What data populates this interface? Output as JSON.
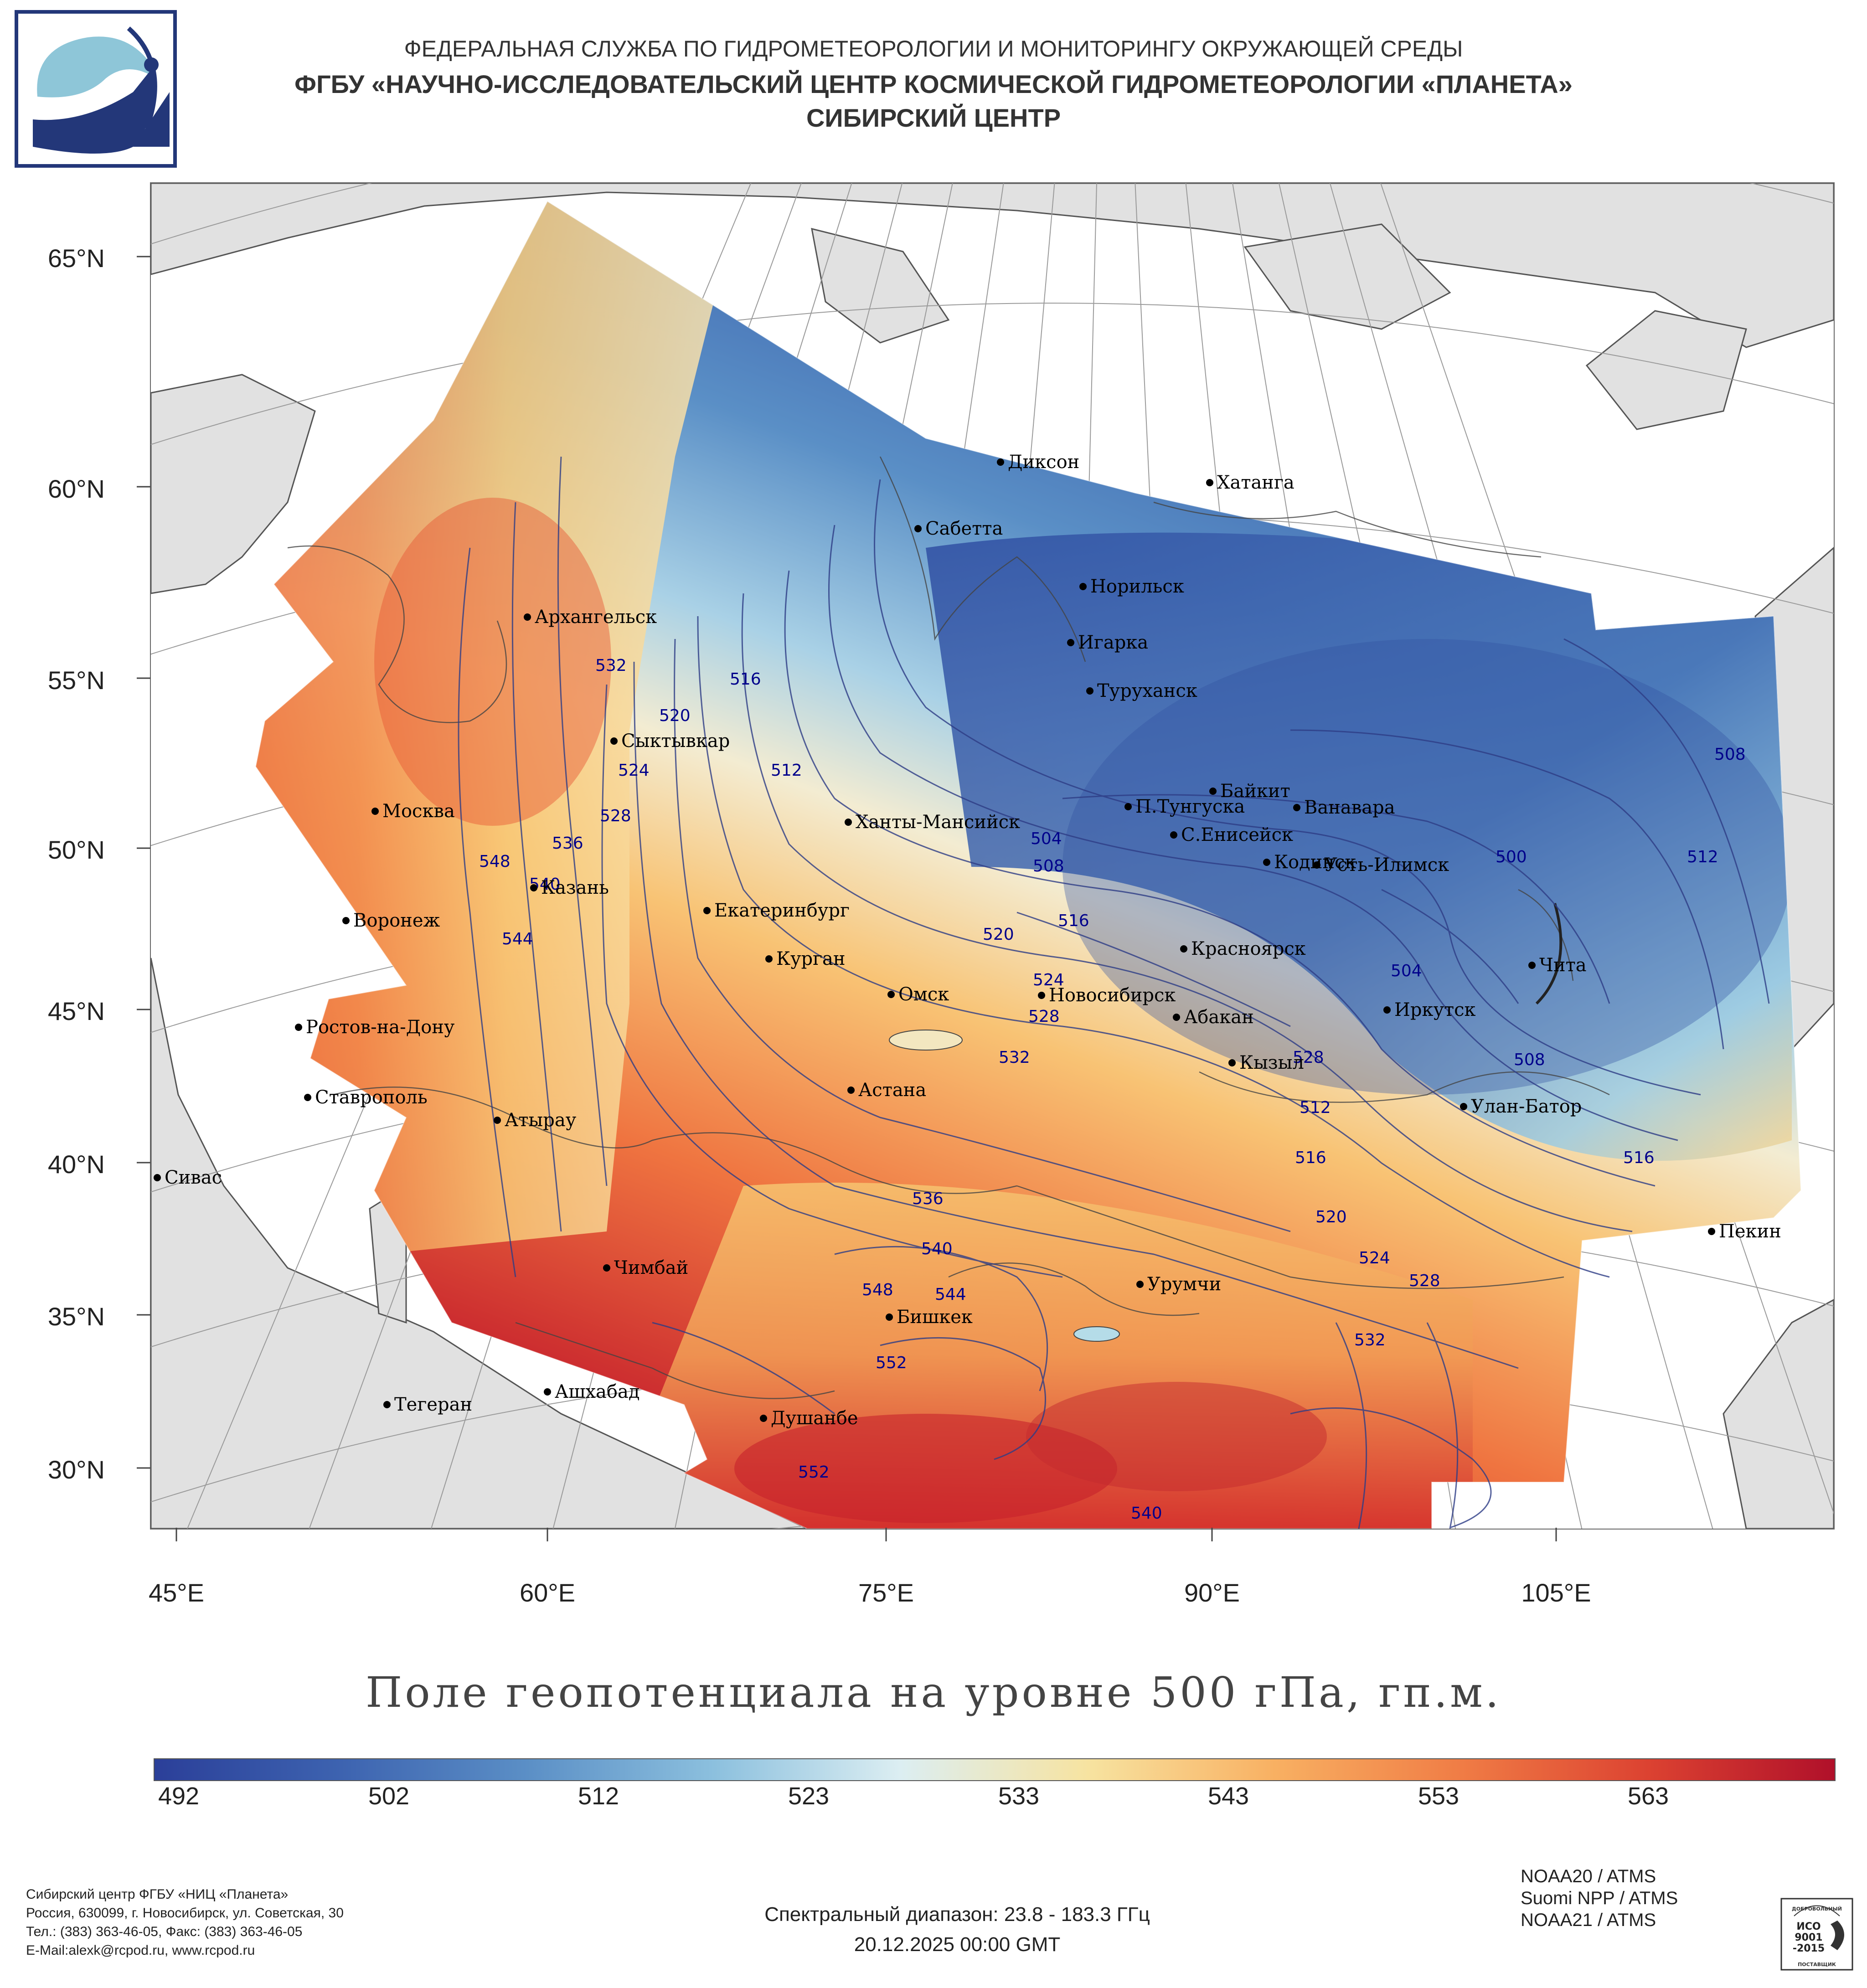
{
  "header": {
    "line1": "ФЕДЕРАЛЬНАЯ СЛУЖБА ПО ГИДРОМЕТЕОРОЛОГИИ И МОНИТОРИНГУ ОКРУЖАЮЩЕЙ СРЕДЫ",
    "line2": "ФГБУ «НАУЧНО-ИССЛЕДОВАТЕЛЬСКИЙ ЦЕНТР КОСМИЧЕСКОЙ ГИДРОМЕТЕОРОЛОГИИ «ПЛАНЕТА»",
    "line3": "СИБИРСКИЙ ЦЕНТР"
  },
  "map": {
    "lat_labels": [
      "65°N",
      "60°N",
      "55°N",
      "50°N",
      "45°N",
      "40°N",
      "35°N",
      "30°N"
    ],
    "lon_labels": [
      "45°E",
      "60°E",
      "75°E",
      "90°E",
      "105°E"
    ],
    "cities": [
      "Диксон",
      "Хатанга",
      "Сабетта",
      "Норильск",
      "Архангельск",
      "Игарка",
      "Туруханск",
      "Сыктывкар",
      "Байкит",
      "П.Тунгуска",
      "Ванавара",
      "Москва",
      "Ханты-Мансийск",
      "С.Енисейск",
      "Кодинск",
      "Усть-Илимск",
      "Казань",
      "Екатеринбург",
      "Воронеж",
      "Красноярск",
      "Курган",
      "Чита",
      "Омск",
      "Новосибирск",
      "Иркутск",
      "Абакан",
      "Ростов-на-Дону",
      "Кызыл",
      "Астана",
      "Ставрополь",
      "Улан-Батор",
      "Атырау",
      "Сивас",
      "Пекин",
      "Чимбай",
      "Урумчи",
      "Бишкек",
      "Ашхабад",
      "Тегеран",
      "Душанбе"
    ],
    "isolines": [
      "532",
      "516",
      "520",
      "524",
      "512",
      "528",
      "548",
      "536",
      "540",
      "544",
      "508",
      "504",
      "500",
      "516",
      "508",
      "512",
      "520",
      "524",
      "528",
      "504",
      "532",
      "528",
      "512",
      "516",
      "520",
      "524",
      "528",
      "516",
      "508",
      "536",
      "540",
      "548",
      "544",
      "552",
      "532",
      "552",
      "540"
    ]
  },
  "title": "Поле геопотенциала на уровне 500 гПа, гп.м.",
  "colorbar": {
    "labels": [
      "492",
      "502",
      "512",
      "523",
      "533",
      "543",
      "553",
      "563"
    ],
    "colors": [
      "#2b3f99",
      "#3d63b0",
      "#5b8fc6",
      "#8cc0de",
      "#dceef2",
      "#f7e3a0",
      "#f8b062",
      "#f07c45",
      "#dc4231",
      "#b0102a"
    ]
  },
  "footer": {
    "org_lines": [
      "Сибирский центр ФГБУ «НИЦ «Планета»",
      "Россия, 630099, г. Новосибирск, ул. Советская, 30",
      "Тел.: (383) 363-46-05, Факс: (383) 363-46-05",
      "E-Mail:alexk@rcpod.ru, www.rcpod.ru"
    ],
    "spectral": "Спектральный диапазон: 23.8 - 183.3 ГГц",
    "datetime": "20.12.2025 00:00 GMT",
    "satellites": [
      "NOAA20 / ATMS",
      "Suomi NPP / ATMS",
      "NOAA21 / ATMS"
    ],
    "iso": [
      "ДОБРОВОЛЬНЫЙ",
      "ИСО",
      "9001",
      "-2015",
      "ПОСТАВЩИК"
    ]
  }
}
